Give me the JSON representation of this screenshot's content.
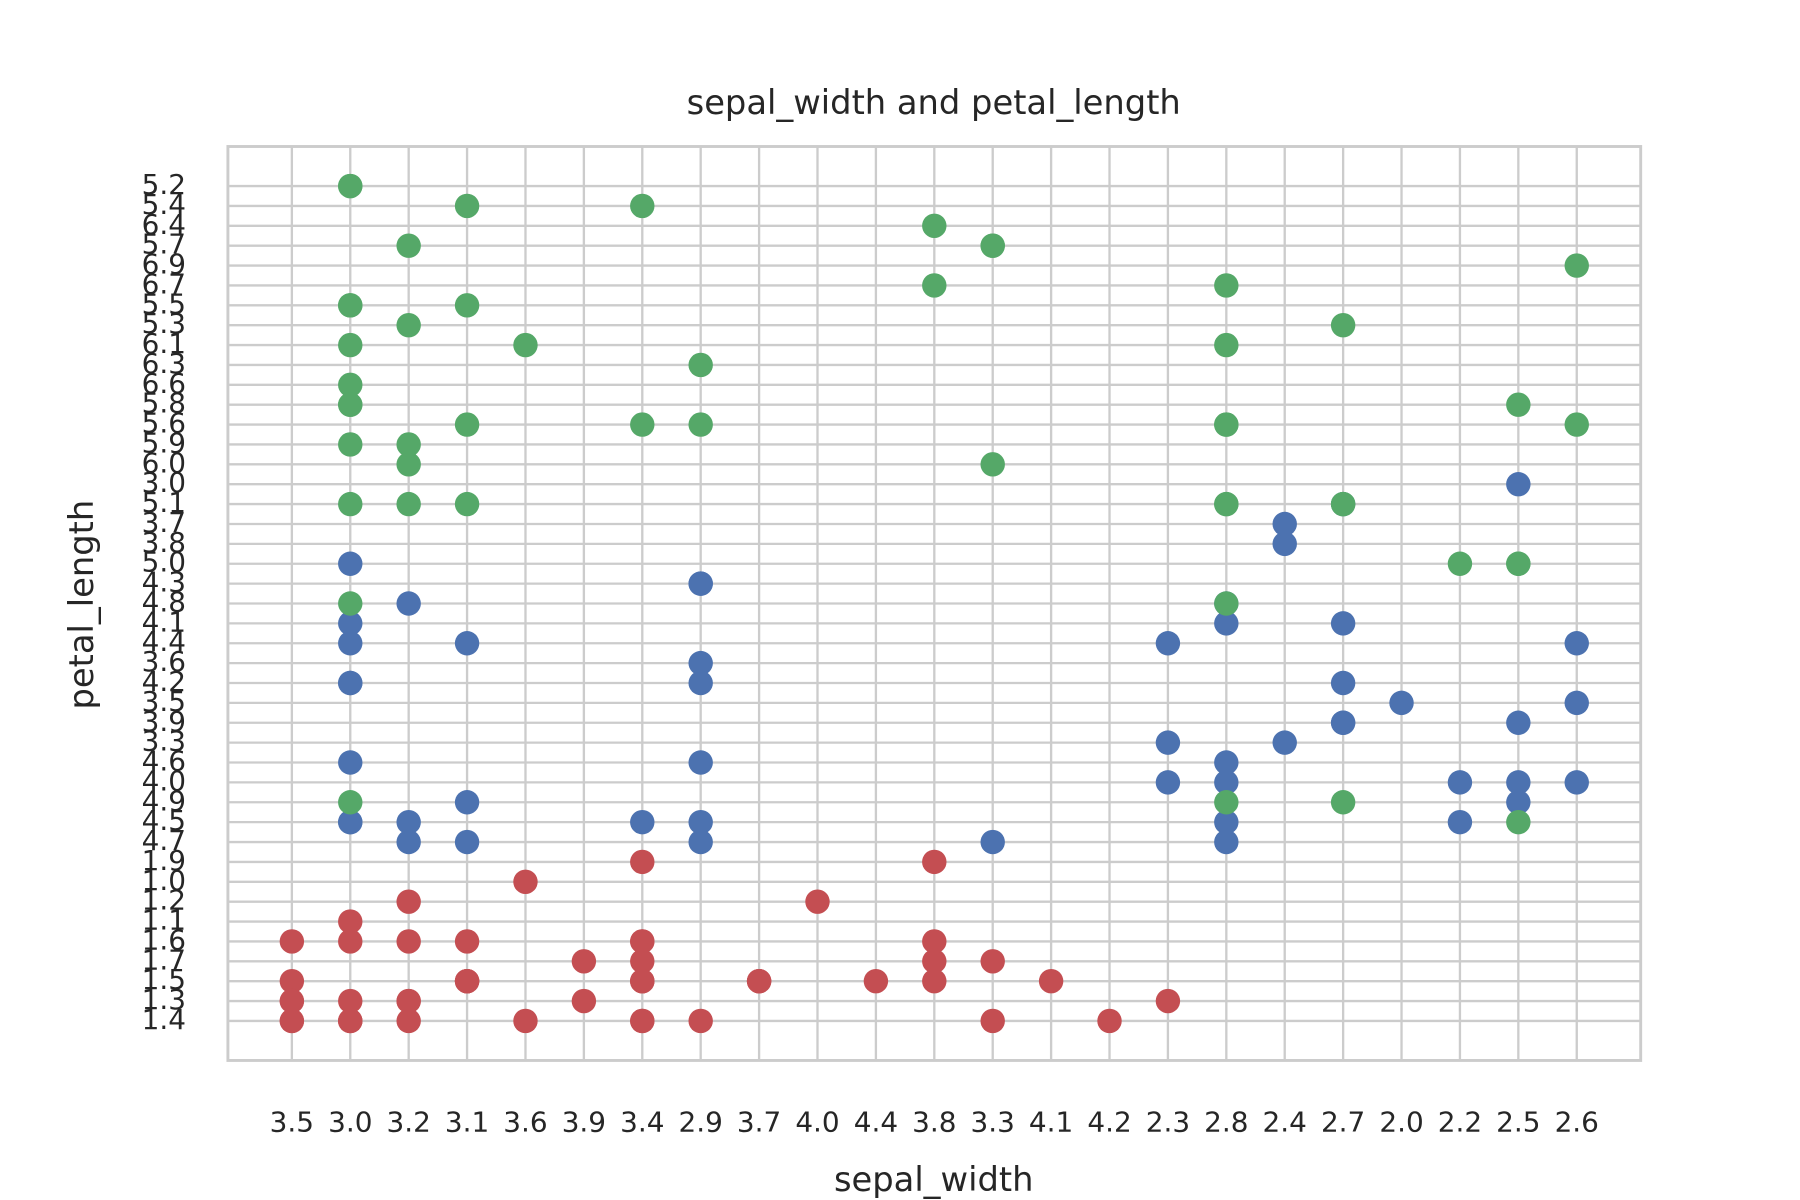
{
  "chart_data": {
    "type": "scatter",
    "title": "sepal_width  and  petal_length",
    "xlabel": "sepal_width",
    "ylabel": "petal_length",
    "grid": true,
    "categories": [
      "3.5",
      "3.0",
      "3.2",
      "3.1",
      "3.6",
      "3.9",
      "3.4",
      "2.9",
      "3.7",
      "4.0",
      "4.4",
      "3.8",
      "3.3",
      "4.1",
      "4.2",
      "2.3",
      "2.8",
      "2.4",
      "2.7",
      "2.0",
      "2.2",
      "2.5",
      "2.6"
    ],
    "ycategories": [
      "1.4",
      "1.3",
      "1.5",
      "1.7",
      "1.6",
      "1.1",
      "1.2",
      "1.0",
      "1.9",
      "4.7",
      "4.5",
      "4.9",
      "4.0",
      "4.6",
      "3.3",
      "3.9",
      "3.5",
      "4.2",
      "3.6",
      "4.4",
      "4.1",
      "4.8",
      "4.3",
      "5.0",
      "3.8",
      "3.7",
      "5.1",
      "3.0",
      "6.0",
      "5.9",
      "5.6",
      "5.8",
      "6.6",
      "6.3",
      "6.1",
      "5.3",
      "5.5",
      "6.7",
      "6.9",
      "5.7",
      "6.4",
      "5.4",
      "5.2"
    ],
    "series": [
      {
        "color": "#c44e52",
        "x": [
          "3.5",
          "3.0",
          "3.2",
          "3.1",
          "3.6",
          "3.9",
          "3.4",
          "3.4",
          "2.9",
          "3.1",
          "3.7",
          "3.4",
          "3.0",
          "3.0",
          "4.0",
          "4.4",
          "3.9",
          "3.5",
          "3.8",
          "3.8",
          "3.4",
          "3.7",
          "3.6",
          "3.3",
          "3.4",
          "3.0",
          "3.4",
          "3.5",
          "3.4",
          "3.2",
          "3.1",
          "3.4",
          "4.1",
          "4.2",
          "3.1",
          "3.2",
          "3.5",
          "3.1",
          "3.0",
          "3.4",
          "3.5",
          "2.3",
          "3.2",
          "3.5",
          "3.8",
          "3.0",
          "3.8",
          "3.2",
          "3.7",
          "3.3"
        ],
        "values": [
          "1.4",
          "1.4",
          "1.3",
          "1.5",
          "1.4",
          "1.7",
          "1.4",
          "1.5",
          "1.4",
          "1.5",
          "1.5",
          "1.6",
          "1.4",
          "1.1",
          "1.2",
          "1.5",
          "1.3",
          "1.4",
          "1.7",
          "1.5",
          "1.7",
          "1.5",
          "1.0",
          "1.7",
          "1.9",
          "1.6",
          "1.6",
          "1.5",
          "1.4",
          "1.6",
          "1.6",
          "1.5",
          "1.5",
          "1.4",
          "1.5",
          "1.2",
          "1.3",
          "1.5",
          "1.3",
          "1.5",
          "1.3",
          "1.3",
          "1.3",
          "1.6",
          "1.9",
          "1.4",
          "1.6",
          "1.4",
          "1.5",
          "1.4"
        ]
      },
      {
        "color": "#4c72b0",
        "x": [
          "3.2",
          "3.2",
          "3.1",
          "2.3",
          "2.8",
          "2.8",
          "3.3",
          "2.4",
          "2.9",
          "2.7",
          "2.0",
          "3.0",
          "2.2",
          "2.9",
          "2.9",
          "3.1",
          "3.0",
          "2.7",
          "2.2",
          "2.5",
          "3.2",
          "2.8",
          "2.5",
          "2.8",
          "2.9",
          "3.0",
          "2.8",
          "3.0",
          "2.9",
          "2.6",
          "2.4",
          "2.4",
          "2.7",
          "2.7",
          "3.0",
          "3.4",
          "3.1",
          "2.3",
          "3.0",
          "2.5",
          "2.6",
          "3.0",
          "2.6",
          "2.3",
          "2.7",
          "3.0",
          "2.9",
          "2.9",
          "2.5",
          "2.8"
        ],
        "values": [
          "4.7",
          "4.5",
          "4.9",
          "4.0",
          "4.6",
          "4.5",
          "4.7",
          "3.3",
          "4.6",
          "3.9",
          "3.5",
          "4.2",
          "4.0",
          "4.7",
          "3.6",
          "4.4",
          "4.5",
          "4.1",
          "4.5",
          "3.9",
          "4.8",
          "4.0",
          "4.9",
          "4.7",
          "4.3",
          "4.4",
          "4.8",
          "5.0",
          "4.5",
          "3.5",
          "3.8",
          "3.7",
          "3.9",
          "5.1",
          "4.5",
          "4.5",
          "4.7",
          "4.4",
          "4.1",
          "4.0",
          "4.4",
          "4.6",
          "4.0",
          "3.3",
          "4.2",
          "4.2",
          "4.2",
          "4.3",
          "3.0",
          "4.1"
        ]
      },
      {
        "color": "#55a868",
        "x": [
          "3.3",
          "2.7",
          "3.0",
          "2.9",
          "3.0",
          "3.0",
          "2.5",
          "2.9",
          "2.5",
          "3.6",
          "3.2",
          "2.7",
          "3.0",
          "2.5",
          "2.8",
          "3.2",
          "3.0",
          "3.8",
          "2.6",
          "2.2",
          "3.2",
          "2.8",
          "2.8",
          "2.7",
          "3.3",
          "3.2",
          "2.8",
          "3.0",
          "2.8",
          "3.0",
          "2.8",
          "3.8",
          "2.8",
          "2.8",
          "2.6",
          "3.0",
          "3.4",
          "3.1",
          "3.0",
          "3.1",
          "3.1",
          "3.1",
          "2.7",
          "3.2",
          "3.3",
          "3.0",
          "2.5",
          "3.0",
          "3.4",
          "3.0"
        ],
        "values": [
          "6.0",
          "5.1",
          "5.9",
          "5.6",
          "5.8",
          "6.6",
          "4.5",
          "6.3",
          "5.8",
          "6.1",
          "5.1",
          "5.3",
          "5.5",
          "5.0",
          "5.1",
          "5.3",
          "5.5",
          "6.7",
          "6.9",
          "5.0",
          "5.7",
          "4.9",
          "6.7",
          "4.9",
          "5.7",
          "6.0",
          "4.8",
          "4.9",
          "5.6",
          "5.8",
          "6.1",
          "6.4",
          "5.6",
          "5.1",
          "5.6",
          "6.1",
          "5.6",
          "5.5",
          "4.8",
          "5.4",
          "5.6",
          "5.1",
          "5.1",
          "5.9",
          "5.7",
          "5.2",
          "5.0",
          "5.2",
          "5.4",
          "5.1"
        ]
      }
    ]
  }
}
